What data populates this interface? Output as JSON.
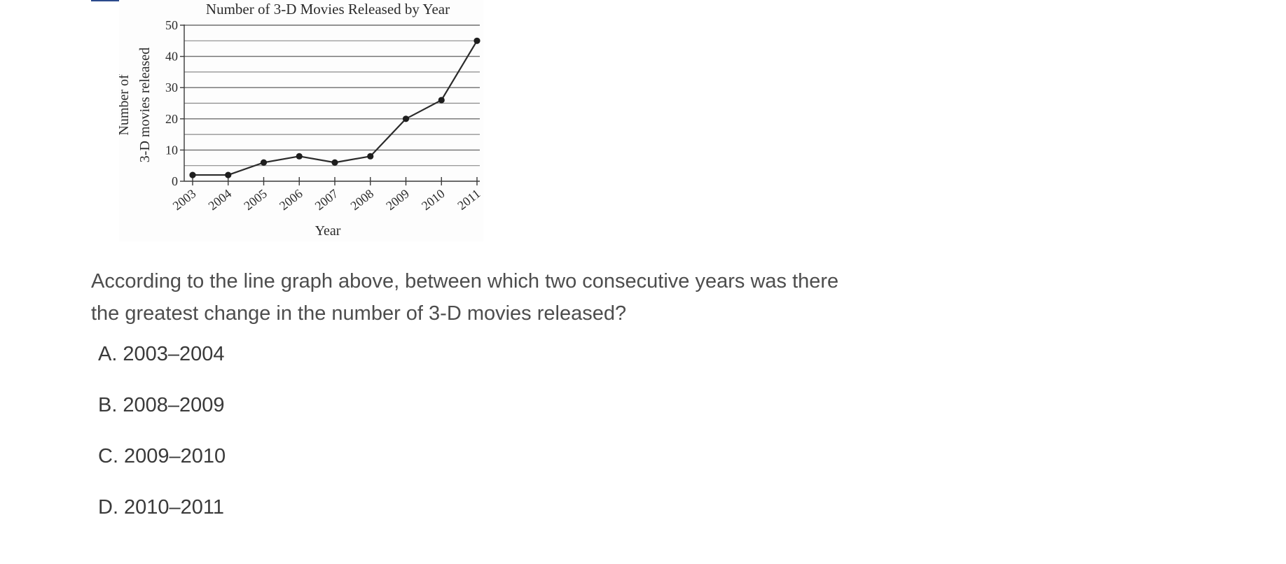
{
  "chart_data": {
    "type": "line",
    "title": "Number of 3-D Movies Released by Year",
    "xlabel": "Year",
    "ylabel_lines": [
      "Number of",
      "3-D movies released"
    ],
    "categories": [
      "2003",
      "2004",
      "2005",
      "2006",
      "2007",
      "2008",
      "2009",
      "2010",
      "2011"
    ],
    "values": [
      2,
      2,
      6,
      8,
      6,
      8,
      20,
      26,
      45
    ],
    "ylim": [
      0,
      50
    ],
    "yticks": [
      0,
      10,
      20,
      30,
      40,
      50
    ],
    "grid": true,
    "legend": "none"
  },
  "question": {
    "text": "According to the line graph above, between which two consecutive years was there the greatest change in the number of 3-D movies released?"
  },
  "choices": [
    {
      "letter": "A.",
      "text": "2003–2004"
    },
    {
      "letter": "B.",
      "text": "2008–2009"
    },
    {
      "letter": "C.",
      "text": "2009–2010"
    },
    {
      "letter": "D.",
      "text": "2010–2011"
    }
  ]
}
